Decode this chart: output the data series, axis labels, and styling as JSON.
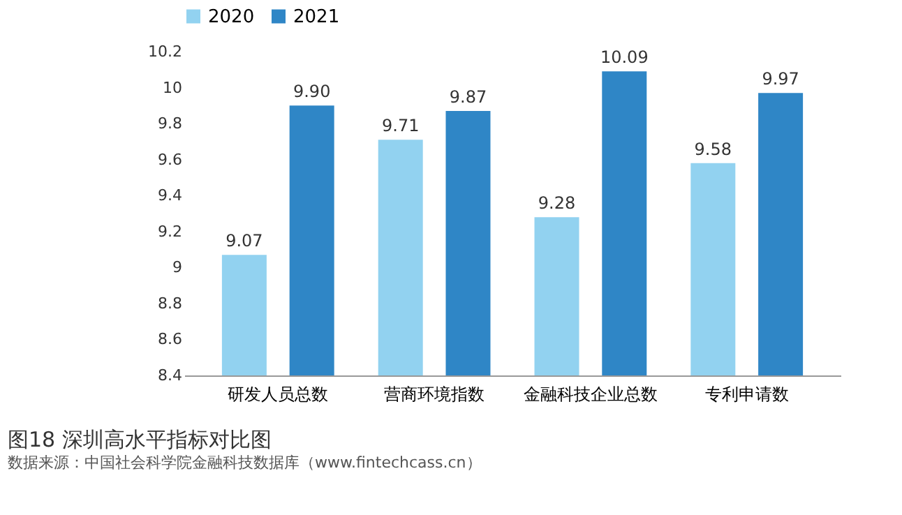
{
  "chart_data": {
    "type": "bar",
    "title": "图18  深圳高水平指标对比图",
    "annotations": [
      "数据来源：中国社会科学院金融科技数据库（www.fintechcass.cn）"
    ],
    "categories": [
      "研发人员总数",
      "营商环境指数",
      "金融科技企业总数",
      "专利申请数"
    ],
    "series": [
      {
        "name": "2020",
        "color": "#92d2f0",
        "values": [
          9.07,
          9.71,
          9.28,
          9.58
        ],
        "value_labels": [
          "9.07",
          "9.71",
          "9.28",
          "9.58"
        ]
      },
      {
        "name": "2021",
        "color": "#2f86c6",
        "values": [
          9.9,
          9.87,
          10.09,
          9.97
        ],
        "value_labels": [
          "9.90",
          "9.87",
          "10.09",
          "9.97"
        ]
      }
    ],
    "ylim": [
      8.4,
      10.2
    ],
    "yticks": [
      8.4,
      8.6,
      8.8,
      9,
      9.2,
      9.4,
      9.6,
      9.8,
      10,
      10.2
    ],
    "grid": false,
    "legend": "top"
  }
}
